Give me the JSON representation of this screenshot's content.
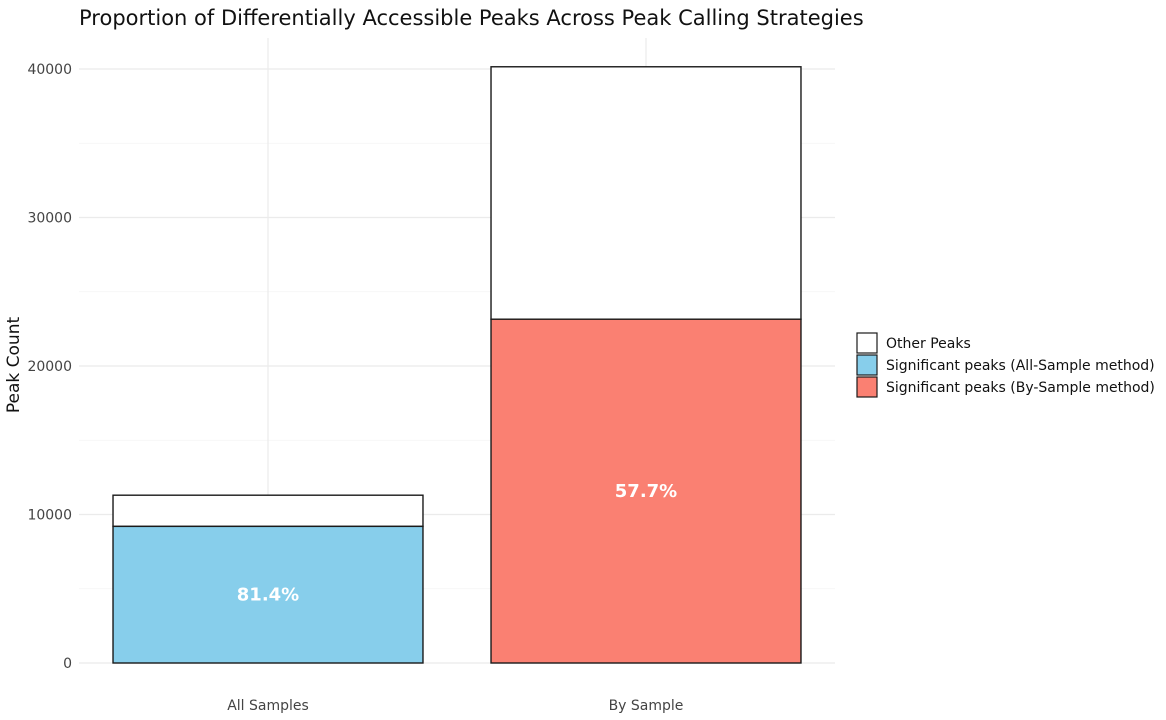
{
  "chart_data": {
    "type": "bar",
    "stacked": true,
    "title": "Proportion of Differentially Accessible Peaks Across Peak Calling Strategies",
    "xlabel": "",
    "ylabel": "Peak Count",
    "ylim": [
      0,
      42200
    ],
    "yticks": [
      0,
      10000,
      20000,
      30000,
      40000
    ],
    "grid": true,
    "legend_position": "right",
    "categories": [
      "All Samples",
      "By Sample"
    ],
    "bars": [
      {
        "category": "All Samples",
        "significant": 9200,
        "total": 11300,
        "significant_series": "Significant peaks (All-Sample method)",
        "label": "81.4%"
      },
      {
        "category": "By Sample",
        "significant": 23150,
        "total": 40150,
        "significant_series": "Significant peaks (By-Sample method)",
        "label": "57.7%"
      }
    ],
    "legend": [
      {
        "name": "Other Peaks",
        "color": "#ffffff"
      },
      {
        "name": "Significant peaks (All-Sample method)",
        "color": "#87ceeb"
      },
      {
        "name": "Significant peaks (By-Sample method)",
        "color": "#fa8072"
      }
    ]
  }
}
